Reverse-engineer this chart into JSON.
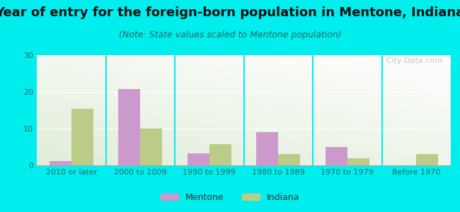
{
  "title": "Year of entry for the foreign-born population in Mentone, Indiana",
  "subtitle": "(Note: State values scaled to Mentone population)",
  "categories": [
    "2010 or later",
    "2000 to 2009",
    "1990 to 1999",
    "1980 to 1989",
    "1970 to 1979",
    "Before 1970"
  ],
  "mentone_values": [
    1.2,
    20.7,
    3.3,
    9.0,
    5.0,
    0
  ],
  "indiana_values": [
    15.3,
    10.0,
    5.8,
    3.0,
    2.0,
    3.0
  ],
  "mentone_color": "#cc99cc",
  "indiana_color": "#bbcc88",
  "bar_width": 0.32,
  "ylim": [
    0,
    30
  ],
  "yticks": [
    0,
    10,
    20,
    30
  ],
  "background_color": "#00eeee",
  "title_fontsize": 13,
  "subtitle_fontsize": 9,
  "tick_fontsize": 8,
  "legend_fontsize": 9,
  "watermark_text": " City-Data.com"
}
